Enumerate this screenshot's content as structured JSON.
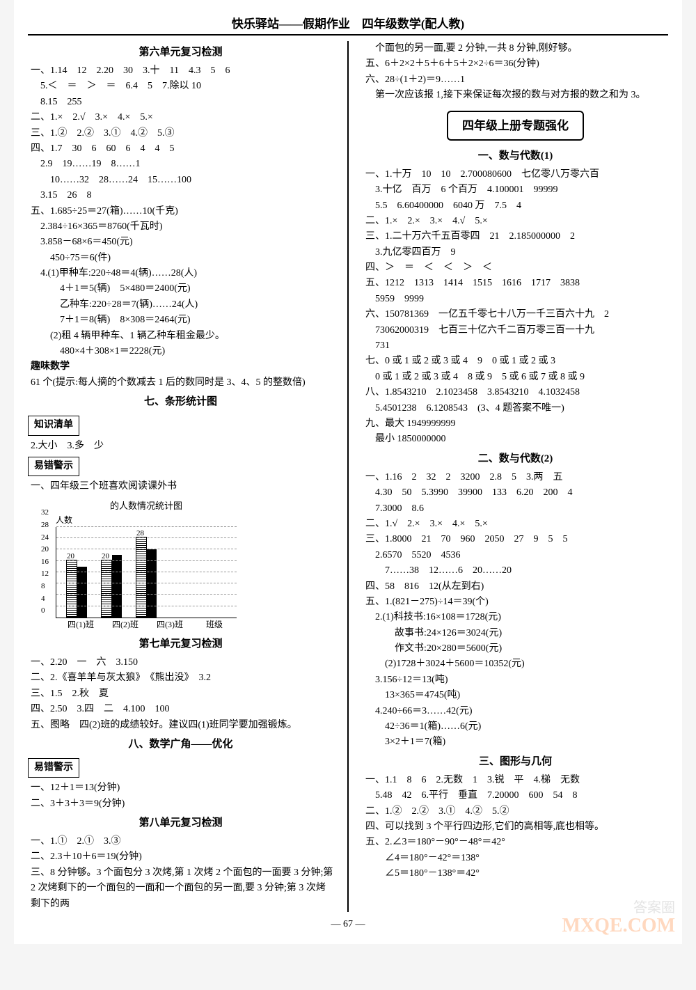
{
  "header": "快乐驿站——假期作业　四年级数学(配人教)",
  "pagenum": "— 67 —",
  "watermark": "MXQE.COM",
  "watermark2": "答案圈",
  "left": {
    "u6_title": "第六单元复习检测",
    "u6": [
      "一、1.14　12　2.20　30　3.十　11　4.3　5　6",
      "　5.＜　＝　＞　＝　6.4　5　7.除以 10",
      "　8.15　255",
      "二、1.×　2.√　3.×　4.×　5.×",
      "三、1.②　2.②　3.①　4.②　5.③",
      "四、1.7　30　6　60　6　4　4　5",
      "　2.9　19……19　8……1",
      "　　10……32　28……24　15……100",
      "　3.15　26　8",
      "五、1.685÷25＝27(箱)……10(千克)",
      "　2.384÷16×365＝8760(千瓦时)",
      "　3.858－68×6＝450(元)",
      "　　450÷75＝6(件)",
      "　4.(1)甲种车:220÷48＝4(辆)……28(人)",
      "　　　4＋1＝5(辆)　5×480＝2400(元)",
      "　　　乙种车:220÷28＝7(辆)……24(人)",
      "　　　7＋1＝8(辆)　8×308＝2464(元)",
      "　　(2)租 4 辆甲种车、1 辆乙种车租金最少。",
      "　　　480×4＋308×1＝2228(元)"
    ],
    "fun_title": "趣味数学",
    "fun": "61 个(提示:每人摘的个数减去 1 后的数同时是 3、4、5 的整数倍)",
    "u7_title": "七、条形统计图",
    "box_knowledge": "知识清单",
    "knowledge": "2.大小　3.多　少",
    "box_warn": "易错警示",
    "warn_line": "一、四年级三个班喜欢阅读课外书",
    "chart": {
      "title": "的人数情况统计图",
      "ylabel": "人数",
      "xlabel_end": "班级",
      "ymax": 32,
      "ystep": 4,
      "yticks": [
        "0",
        "4",
        "8",
        "12",
        "16",
        "20",
        "24",
        "28",
        "32"
      ],
      "categories": [
        "四(1)班",
        "四(2)班",
        "四(3)班"
      ],
      "series_a": [
        20,
        20,
        28
      ],
      "series_b": [
        18,
        22,
        24
      ],
      "bar_labels": [
        "20",
        "20",
        "28"
      ]
    },
    "u7rev_title": "第七单元复习检测",
    "u7rev": [
      "一、2.20　一　六　3.150",
      "二、2.《喜羊羊与灰太狼》　《熊出没》　3.2",
      "三、1.5　2.秋　夏",
      "四、2.50　3.四　二　4.100　100",
      "五、图略　四(2)班的成绩较好。建议四(1)班同学要加强锻炼。"
    ],
    "u8_title": "八、数学广角——优化",
    "box_warn2": "易错警示",
    "u8warn": [
      "一、12＋1＝13(分钟)",
      "二、3＋3＋3＝9(分钟)"
    ],
    "u8rev_title": "第八单元复习检测",
    "u8rev": [
      "一、1.①　2.①　3.③",
      "二、2.3＋10＋6＝19(分钟)",
      "三、8 分钟够。3 个面包分 3 次烤,第 1 次烤 2 个面包的一面要 3 分钟;第 2 次烤剩下的一个面包的一面和一个面包的另一面,要 3 分钟;第 3 次烤剩下的两"
    ]
  },
  "right": {
    "cont": [
      "　个面包的另一面,要 2 分钟,一共 8 分钟,刚好够。",
      "五、6＋2×2＋5＋6＋5＋2×2÷6＝36(分钟)",
      "六、28÷(1＋2)＝9……1",
      "　第一次应该报 1,接下来保证每次报的数与对方报的数之和为 3。"
    ],
    "bigbox": "四年级上册专题强化",
    "s1_title": "一、数与代数(1)",
    "s1": [
      "一、1.十万　10　10　2.700080600　七亿零八万零六百",
      "　3.十亿　百万　6 个百万　4.100001　99999",
      "　5.5　6.60400000　6040 万　7.5　4",
      "二、1.×　2.×　3.×　4.√　5.×",
      "三、1.二十万六千五百零四　21　2.185000000　2",
      "　3.九亿零四百万　9",
      "四、＞　＝　＜　＜　＞　＜",
      "五、1212　1313　1414　1515　1616　1717　3838",
      "　5959　9999",
      "六、150781369　一亿五千零七十八万一千三百六十九　2",
      "　73062000319　七百三十亿六千二百万零三百一十九",
      "　731",
      "七、0 或 1 或 2 或 3 或 4　9　0 或 1 或 2 或 3",
      "　0 或 1 或 2 或 3 或 4　8 或 9　5 或 6 或 7 或 8 或 9",
      "八、1.8543210　2.1023458　3.8543210　4.1032458",
      "　5.4501238　6.1208543　(3、4 题答案不唯一)",
      "九、最大 1949999999",
      "　最小 1850000000"
    ],
    "s2_title": "二、数与代数(2)",
    "s2": [
      "一、1.16　2　32　2　3200　2.8　5　3.两　五",
      "　4.30　50　5.3990　39900　133　6.20　200　4",
      "　7.3000　8.6",
      "二、1.√　2.×　3.×　4.×　5.×",
      "三、1.8000　21　70　960　2050　27　9　5　5",
      "　2.6570　5520　4536",
      "　　7……38　12……6　20……20",
      "四、58　816　12(从左到右)",
      "五、1.(821－275)÷14＝39(个)",
      "　2.(1)科技书:16×108＝1728(元)",
      "　　　故事书:24×126＝3024(元)",
      "　　　作文书:20×280＝5600(元)",
      "　　(2)1728＋3024＋5600＝10352(元)",
      "　3.156÷12＝13(吨)",
      "　　13×365＝4745(吨)",
      "　4.240÷66＝3……42(元)",
      "　　42÷36＝1(箱)……6(元)",
      "　　3×2＋1＝7(箱)"
    ],
    "s3_title": "三、图形与几何",
    "s3": [
      "一、1.1　8　6　2.无数　1　3.锐　平　4.梯　无数",
      "　5.48　42　6.平行　垂直　7.20000　600　54　8",
      "二、1.②　2.②　3.①　4.②　5.②",
      "四、可以找到 3 个平行四边形,它们的高相等,底也相等。",
      "五、2.∠3＝180°－90°－48°＝42°",
      "　　∠4＝180°－42°＝138°",
      "　　∠5＝180°－138°＝42°"
    ]
  }
}
